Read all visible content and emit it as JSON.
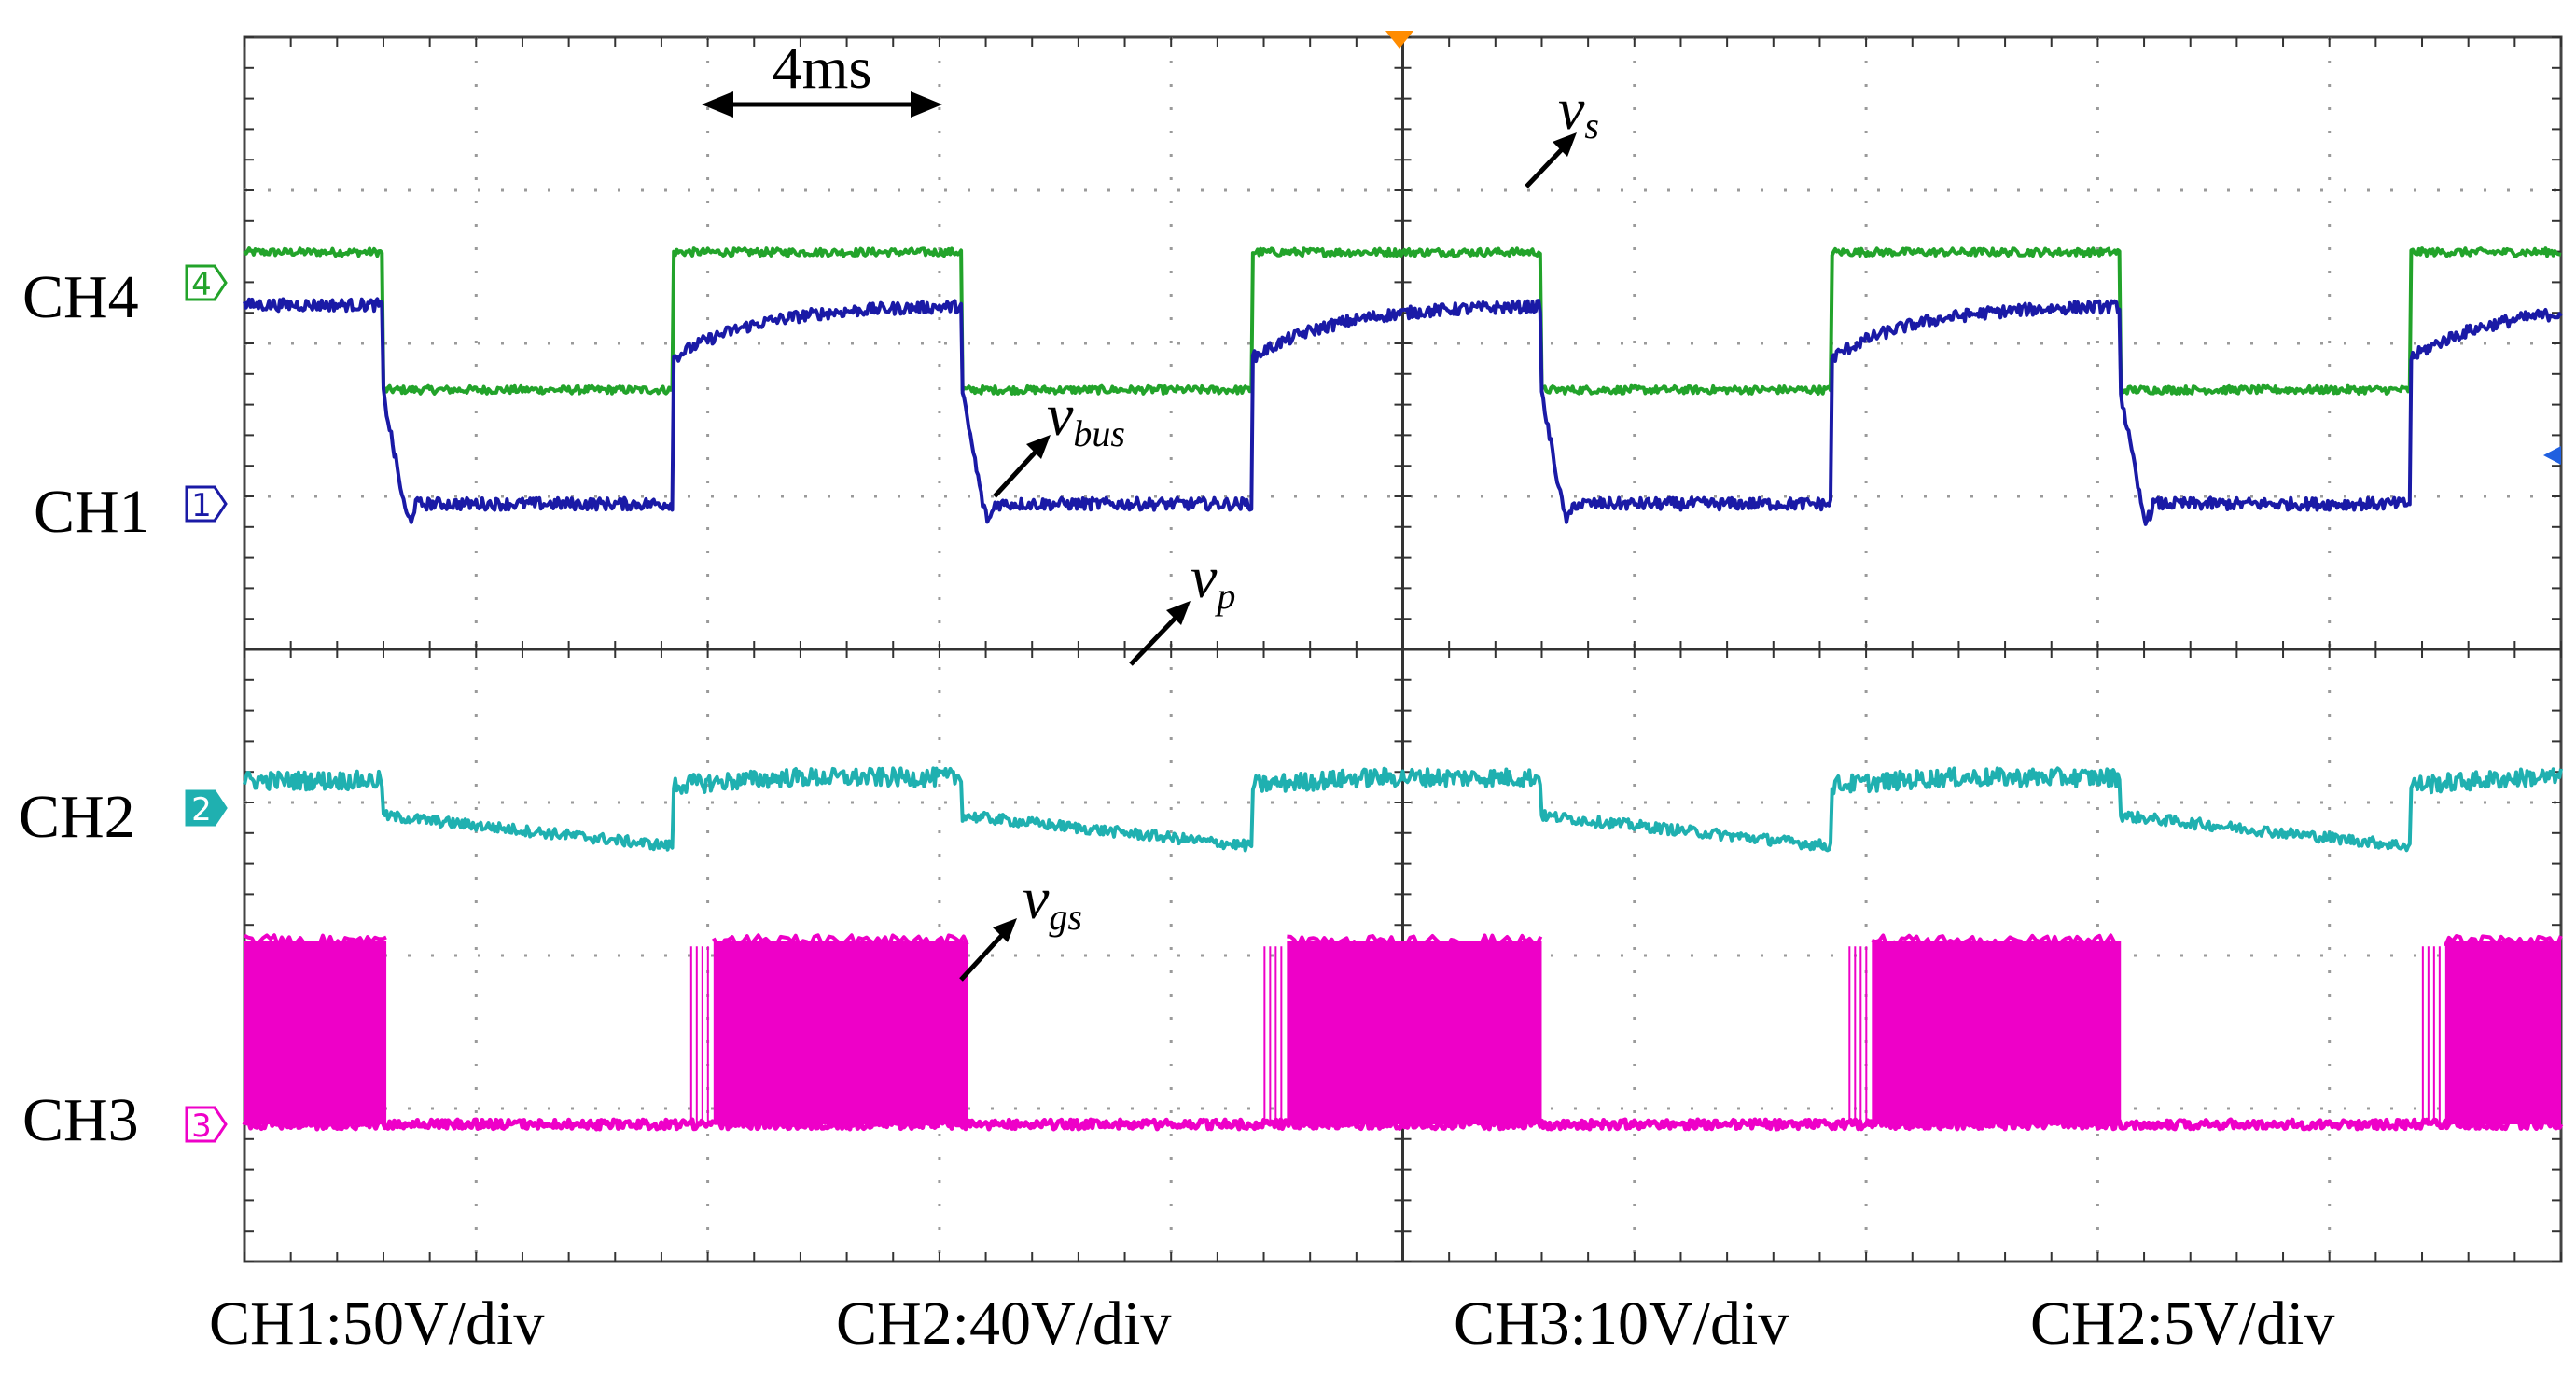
{
  "chart_data": {
    "type": "line",
    "title": "",
    "time_scale_label": "4ms",
    "xlim": [
      0,
      40
    ],
    "x_unit": "ms",
    "grid": true,
    "divisions": {
      "x": 10,
      "y": 8
    },
    "series": [
      {
        "name": "v_s",
        "channel": "CH4",
        "marker": "4",
        "color": "#22a32a",
        "annotation": {
          "symbol": "v",
          "sub": "s"
        },
        "pattern": "square",
        "high_div": 0.2,
        "low_div": -0.7,
        "period_ms": 10,
        "transitions_ms": [
          2.4,
          7.4,
          12.4,
          17.4,
          22.4,
          27.4,
          32.4,
          37.4
        ],
        "starts_high": true
      },
      {
        "name": "v_bus",
        "channel": "CH1",
        "marker": "1",
        "color": "#1a1aa6",
        "annotation": {
          "symbol": "v",
          "sub": "bus"
        },
        "pattern": "square-with-rise",
        "high_div": 1.3,
        "low_div": 0.0,
        "rise_start_div": 0.95,
        "period_ms": 10,
        "transitions_ms": [
          2.4,
          7.4,
          12.4,
          17.4,
          22.4,
          27.4,
          32.4,
          37.4
        ],
        "starts_high": true
      },
      {
        "name": "v_p",
        "channel": "CH2",
        "marker": "2",
        "color": "#1fb0b0",
        "annotation": {
          "symbol": "v",
          "sub": "p"
        },
        "pattern": "sawtooth-square",
        "high_div": 0.2,
        "low_start_div": -0.05,
        "low_end_div": -0.25,
        "period_ms": 10,
        "transitions_ms": [
          2.4,
          7.4,
          12.4,
          17.4,
          22.4,
          27.4,
          32.4,
          37.4
        ],
        "starts_high": true
      },
      {
        "name": "v_gs",
        "channel": "CH3",
        "marker": "3",
        "color": "#ee00c8",
        "annotation": {
          "symbol": "v",
          "sub": "gs"
        },
        "pattern": "pwm-burst",
        "high_div": 1.2,
        "low_div": 0.0,
        "burst_windows_ms": [
          [
            0,
            2.45
          ],
          [
            8.1,
            12.5
          ],
          [
            18.0,
            22.4
          ],
          [
            28.1,
            32.4
          ],
          [
            38.0,
            40
          ]
        ]
      }
    ],
    "scale_labels": [
      "CH1:50V/div",
      "CH2:40V/div",
      "CH3:10V/div",
      "CH2:5V/div"
    ]
  }
}
